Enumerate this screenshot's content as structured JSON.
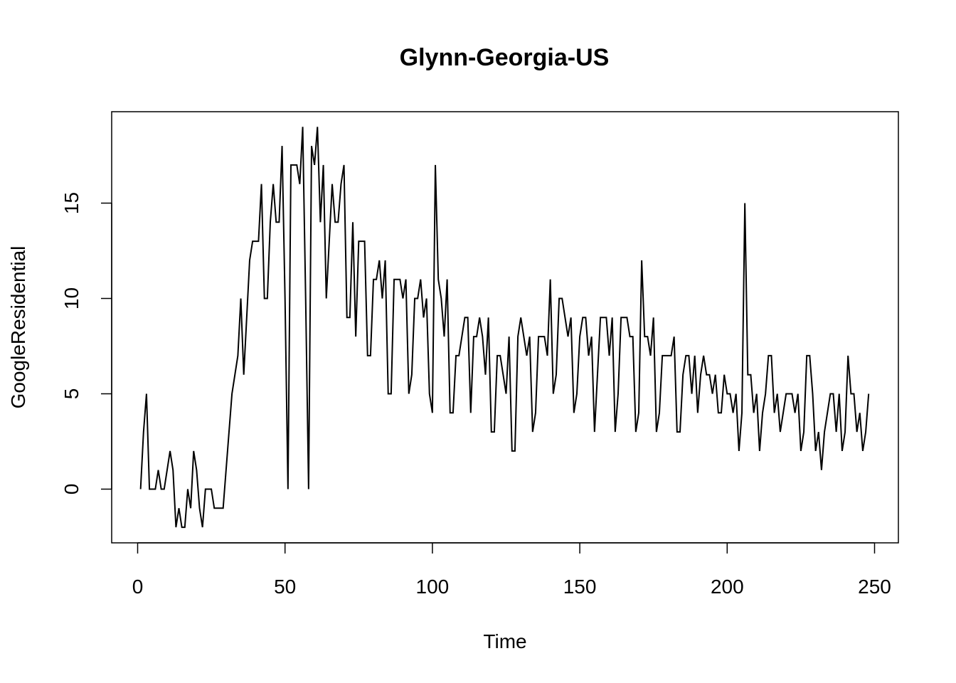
{
  "chart_data": {
    "type": "line",
    "title": "Glynn-Georgia-US",
    "xlabel": "Time",
    "ylabel": "GoogleResidential",
    "xlim": [
      1,
      248
    ],
    "ylim": [
      -2,
      19
    ],
    "x_ticks": [
      0,
      50,
      100,
      150,
      200,
      250
    ],
    "y_ticks": [
      0,
      5,
      10,
      15
    ],
    "x_tick_labels": [
      "0",
      "50",
      "100",
      "150",
      "200",
      "250"
    ],
    "y_tick_labels": [
      "0",
      "5",
      "10",
      "15"
    ],
    "grid": false,
    "legend": "none",
    "line_color": "#000000",
    "series": [
      {
        "x_start": 1,
        "values": [
          0,
          3,
          5,
          0,
          0,
          0,
          1,
          0,
          0,
          1,
          2,
          1,
          -2,
          -1,
          -2,
          -2,
          0,
          -1,
          2,
          1,
          -1,
          -2,
          0,
          0,
          0,
          -1,
          -1,
          -1,
          -1,
          1,
          3,
          5,
          6,
          7,
          10,
          6,
          9,
          12,
          13,
          13,
          13,
          16,
          10,
          10,
          14,
          16,
          14,
          14,
          18,
          10,
          0,
          17,
          17,
          17,
          16,
          19,
          10,
          0,
          18,
          17,
          19,
          14,
          17,
          10,
          13,
          16,
          14,
          14,
          16,
          17,
          9,
          9,
          14,
          8,
          13,
          13,
          13,
          7,
          7,
          11,
          11,
          12,
          10,
          12,
          5,
          5,
          11,
          11,
          11,
          10,
          11,
          5,
          6,
          10,
          10,
          11,
          9,
          10,
          5,
          4,
          17,
          11,
          10,
          8,
          11,
          4,
          4,
          7,
          7,
          8,
          9,
          9,
          4,
          8,
          8,
          9,
          8,
          6,
          9,
          3,
          3,
          7,
          7,
          6,
          5,
          8,
          2,
          2,
          8,
          9,
          8,
          7,
          8,
          3,
          4,
          8,
          8,
          8,
          7,
          11,
          5,
          6,
          10,
          10,
          9,
          8,
          9,
          4,
          5,
          8,
          9,
          9,
          7,
          8,
          3,
          6,
          9,
          9,
          9,
          7,
          9,
          3,
          5,
          9,
          9,
          9,
          8,
          8,
          3,
          4,
          12,
          8,
          8,
          7,
          9,
          3,
          4,
          7,
          7,
          7,
          7,
          8,
          3,
          3,
          6,
          7,
          7,
          5,
          7,
          4,
          6,
          7,
          6,
          6,
          5,
          6,
          4,
          4,
          6,
          5,
          5,
          4,
          5,
          2,
          4,
          15,
          6,
          6,
          4,
          5,
          2,
          4,
          5,
          7,
          7,
          4,
          5,
          3,
          4,
          5,
          5,
          5,
          4,
          5,
          2,
          3,
          7,
          7,
          5,
          2,
          3,
          1,
          3,
          4,
          5,
          5,
          3,
          5,
          2,
          3,
          7,
          5,
          5,
          3,
          4,
          2,
          3,
          5
        ]
      }
    ]
  }
}
